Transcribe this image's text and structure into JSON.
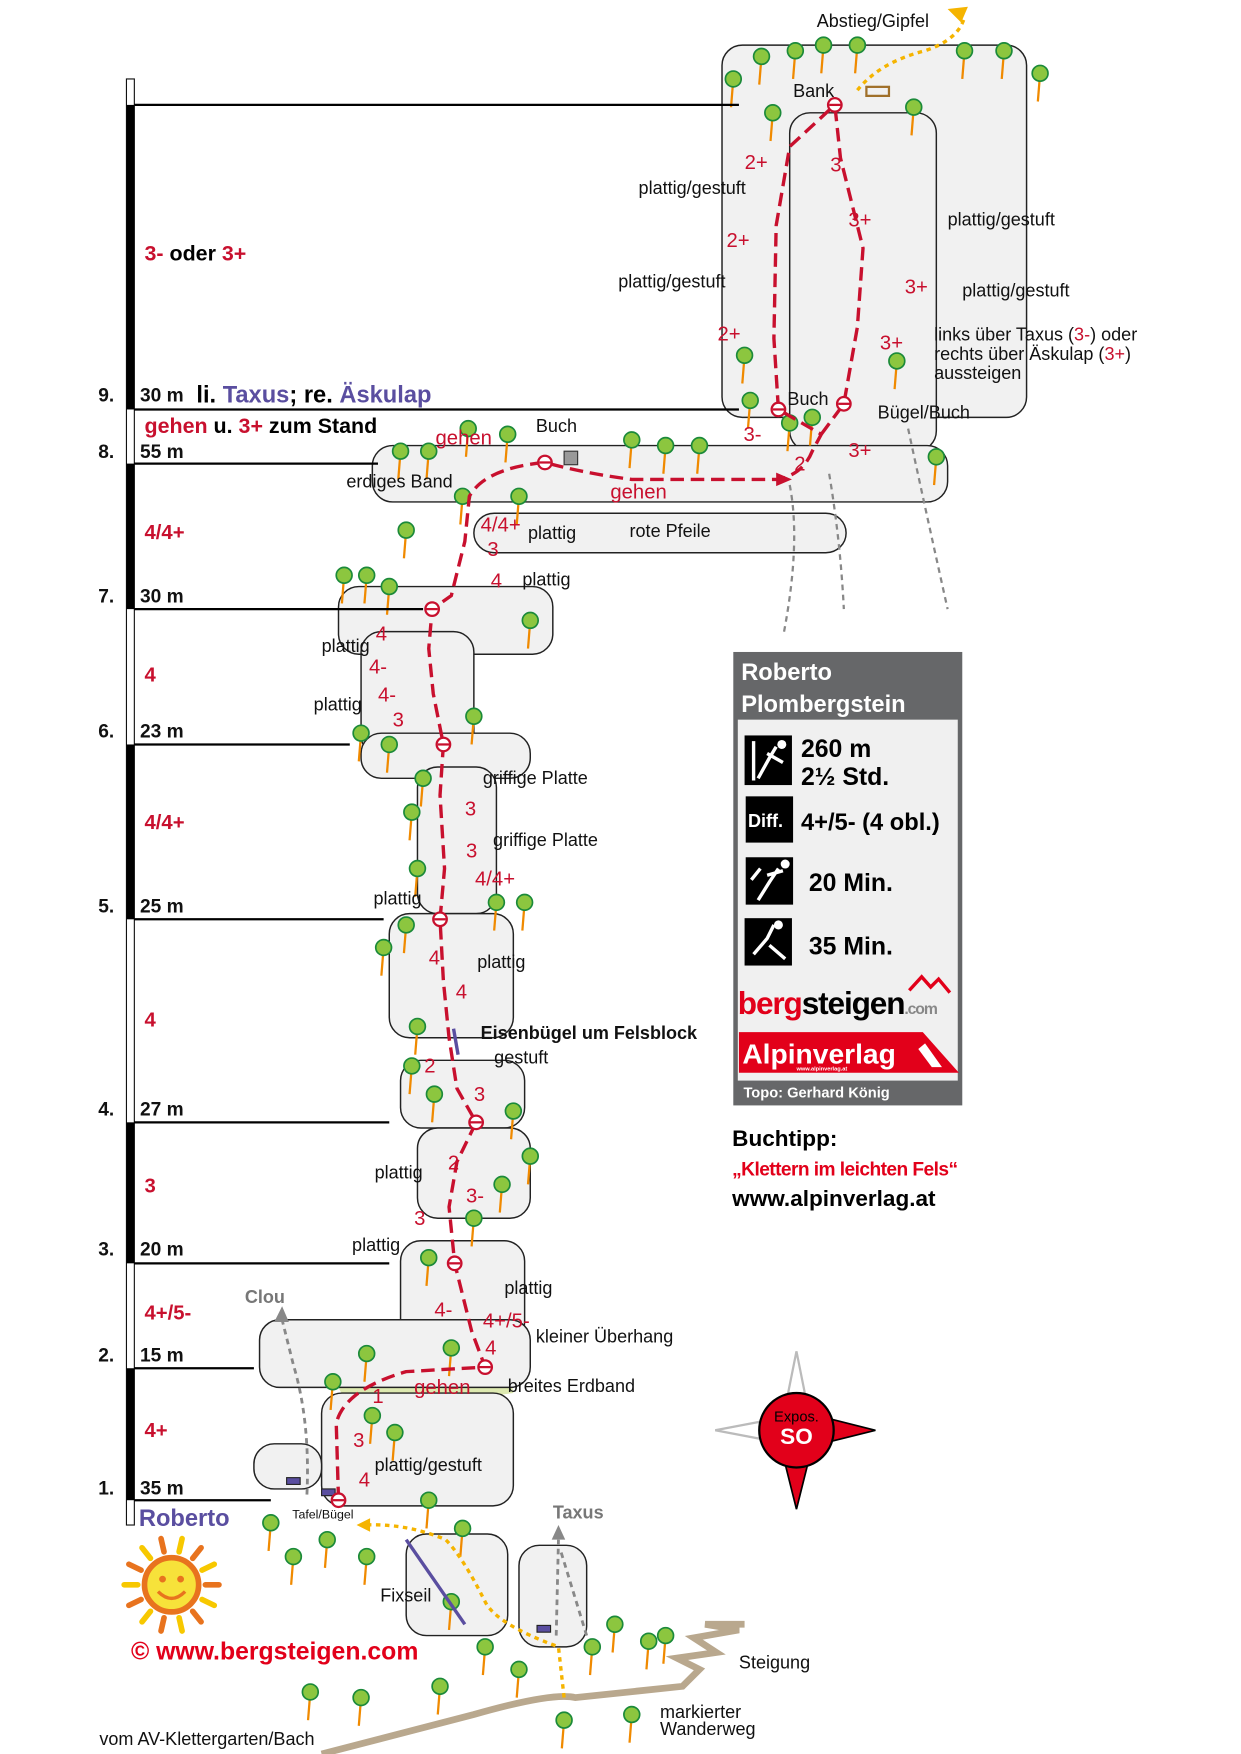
{
  "route": {
    "name": "Roberto",
    "pitches": [
      {
        "number": "1.",
        "length": "35 m",
        "grade": "4+"
      },
      {
        "number": "2.",
        "length": "15 m",
        "grade": "4+/5-"
      },
      {
        "number": "3.",
        "length": "20 m",
        "grade": "3"
      },
      {
        "number": "4.",
        "length": "27 m",
        "grade": "4"
      },
      {
        "number": "5.",
        "length": "25 m",
        "grade": "4/4+"
      },
      {
        "number": "6.",
        "length": "23 m",
        "grade": "4"
      },
      {
        "number": "7.",
        "length": "30 m",
        "grade": "4/4+"
      },
      {
        "number": "8.",
        "length": "55 m",
        "grade_word": "gehen",
        "grade_mid": " u. ",
        "grade_val": "3+",
        "grade_end": " zum Stand"
      },
      {
        "number": "9.",
        "length": "30 m",
        "note_a": "li. ",
        "note_b": "Taxus",
        "note_c": "; re. ",
        "note_d": "Äskulap",
        "grade_a": "3-",
        "grade_b": " oder ",
        "grade_c": "3+"
      }
    ]
  },
  "labels": {
    "abstieg": "Abstieg/Gipfel",
    "bank": "Bank",
    "pg1": "plattig/gestuft",
    "pg2": "plattig/gestuft",
    "pg3": "plattig/gestuft",
    "pg4": "plattig/gestuft",
    "exit1": "links über Taxus (",
    "exit1g": "3-",
    "exit1e": ") oder",
    "exit2": "rechts über Äskulap (",
    "exit2g": "3+",
    "exit2e": ")",
    "exit3": "aussteigen",
    "buch1": "Buch",
    "buch2": "Buch",
    "buegelbuch": "Bügel/Buch",
    "gehen1": "gehen",
    "gehen2": "gehen",
    "gehen3": "gehen",
    "erdiges": "erdiges Band",
    "rote": "rote Pfeile",
    "plattig1": "plattig",
    "plattig2": "plattig",
    "plattig3": "plattig",
    "plattig4": "plattig",
    "plattig5": "plattig",
    "plattig6": "plattig",
    "plattig7": "plattig",
    "plattig8": "plattig",
    "plattig9": "plattig",
    "griffige1": "griffige Platte",
    "griffige2": "griffige Platte",
    "eisen": "Eisenbügel um Felsblock",
    "gestuft": "gestuft",
    "kleiner": "kleiner Überhang",
    "breites": "breites Erdband",
    "pgBottom": "plattig/gestuft",
    "clou": "Clou",
    "taxus": "Taxus",
    "tafel": "Tafel/Bügel",
    "fixseil": "Fixseil",
    "steigung": "Steigung",
    "markiert1": "markierter",
    "markiert2": "Wanderweg",
    "vom": "vom AV-Klettergarten/Bach",
    "copyright": "©  www.bergsteigen.com"
  },
  "route_grades": [
    "2+",
    "3",
    "3+",
    "2+",
    "3+",
    "2+",
    "3+",
    "3-",
    "2",
    "3+",
    "4/4+",
    "3",
    "4",
    "4",
    "4-",
    "4-",
    "3",
    "3",
    "3",
    "4/4+",
    "4",
    "4",
    "2",
    "3",
    "2",
    "3-",
    "3",
    "4-",
    "4+/5-",
    "4",
    "1",
    "3",
    "4"
  ],
  "infobox": {
    "title_line1": "Roberto",
    "title_line2": "Plombergstein",
    "length": "260 m",
    "time": "2½ Std.",
    "diff_badge": "Diff.",
    "difficulty": "4+/5- (4 obl.)",
    "approach": "20 Min.",
    "descent": "35 Min.",
    "logo_berg_red": "berg",
    "logo_berg_black": "steigen",
    "logo_berg_com": ".com",
    "logo_alpin": "Alpinverlag",
    "logo_alpin_url": "www.alpinverlag.at",
    "credit": "Topo: Gerhard König",
    "colors": {
      "header": "#666769",
      "body": "#f0f0f0",
      "brand_red": "#e2001a"
    }
  },
  "book": {
    "heading": "Buchtipp:",
    "title": "„Klettern im leichten Fels“",
    "url": "www.alpinverlag.at"
  },
  "compass": {
    "label": "Expos.",
    "direction": "SO",
    "color": "#e2001a"
  },
  "colors": {
    "route": "#c8102e",
    "names": "#5a4ea0",
    "descent": "#f5b400",
    "trail": "#b9a88e"
  }
}
